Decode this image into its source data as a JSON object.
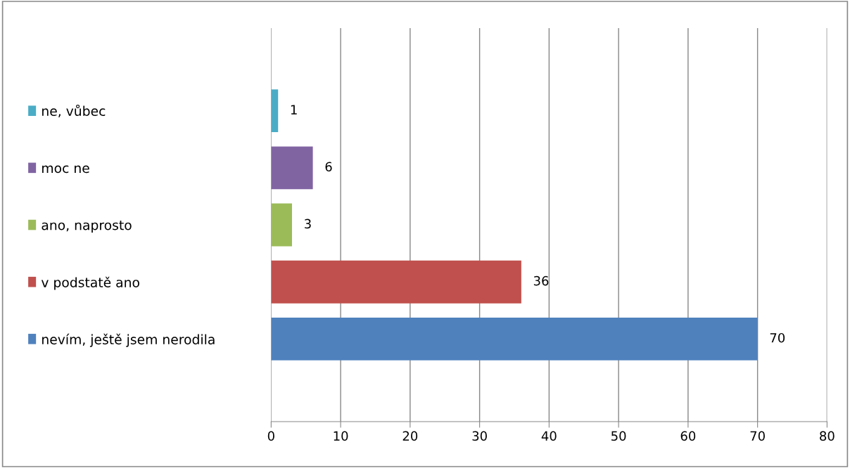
{
  "chart_data": {
    "type": "bar",
    "orientation": "horizontal",
    "categories": [
      "ne, vůbec",
      "moc ne",
      "ano, naprosto",
      "v podstatě ano",
      "nevím, ještě jsem nerodila"
    ],
    "values": [
      1,
      6,
      3,
      36,
      70
    ],
    "colors": [
      "#4bacc6",
      "#8064a2",
      "#9bbb59",
      "#c0504d",
      "#4f81bd"
    ],
    "xlim": [
      0,
      80
    ],
    "xticks": [
      0,
      10,
      20,
      30,
      40,
      50,
      60,
      70,
      80
    ],
    "grid": "x",
    "data_labels": true
  }
}
